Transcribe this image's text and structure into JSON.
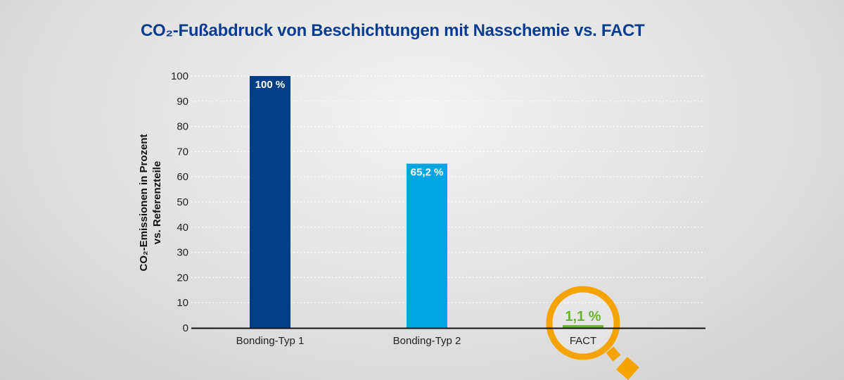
{
  "chart_data": {
    "type": "bar",
    "title": "CO₂-Fußabdruck von Beschichtungen mit Nasschemie vs. FACT",
    "ylabel": [
      "CO₂-Emissionen in Prozent",
      "vs. Referenzteile"
    ],
    "xlabel": "",
    "categories": [
      "Bonding-Typ 1",
      "Bonding-Typ 2",
      "FACT"
    ],
    "values": [
      100,
      65.2,
      1.1
    ],
    "data_labels": [
      "100 %",
      "65,2 %",
      "1,1 %"
    ],
    "colors": [
      "#003f87",
      "#00a6e2",
      "#6ab42d"
    ],
    "ylim": [
      0,
      100
    ],
    "yticks": [
      0,
      10,
      20,
      30,
      40,
      50,
      60,
      70,
      80,
      90,
      100
    ],
    "grid": "dotted horizontal",
    "highlight": {
      "category": "FACT",
      "icon": "magnifier-icon",
      "color": "#f5a300"
    }
  }
}
